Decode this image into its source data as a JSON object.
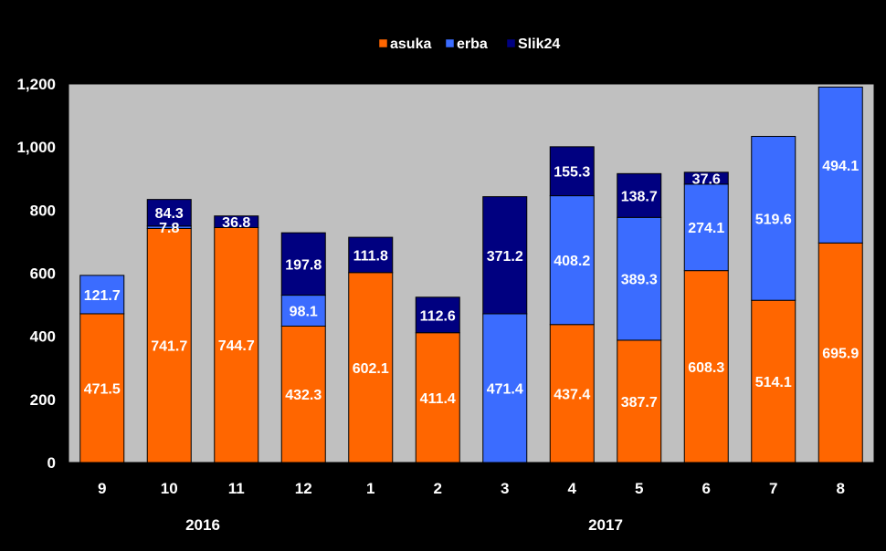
{
  "chart_data": {
    "type": "bar",
    "stacked": true,
    "categories": [
      "9",
      "10",
      "11",
      "12",
      "1",
      "2",
      "3",
      "4",
      "5",
      "6",
      "7",
      "8"
    ],
    "year_labels": [
      {
        "label": "2016",
        "span": [
          "9",
          "12"
        ]
      },
      {
        "label": "2017",
        "span": [
          "1",
          "8"
        ]
      }
    ],
    "series": [
      {
        "name": "asuka",
        "color": "#ff6600",
        "values": [
          471.5,
          741.7,
          744.7,
          432.3,
          602.1,
          411.4,
          0,
          437.4,
          387.7,
          608.3,
          514.1,
          695.9
        ]
      },
      {
        "name": "erba",
        "color": "#3b6cff",
        "values": [
          121.7,
          7.8,
          0,
          98.1,
          0,
          0,
          471.4,
          408.2,
          389.3,
          274.1,
          519.6,
          494.1
        ]
      },
      {
        "name": "Slik24",
        "color": "#000080",
        "values": [
          0,
          84.3,
          36.8,
          197.8,
          111.8,
          112.6,
          371.2,
          155.3,
          138.7,
          37.6,
          0,
          0
        ]
      }
    ],
    "yticks": [
      "0",
      "200",
      "400",
      "600",
      "800",
      "1,000",
      "1,200"
    ],
    "ylim": [
      0,
      1200
    ],
    "grid": false,
    "legend_position": "top-center",
    "background": "#c0c0c0"
  }
}
